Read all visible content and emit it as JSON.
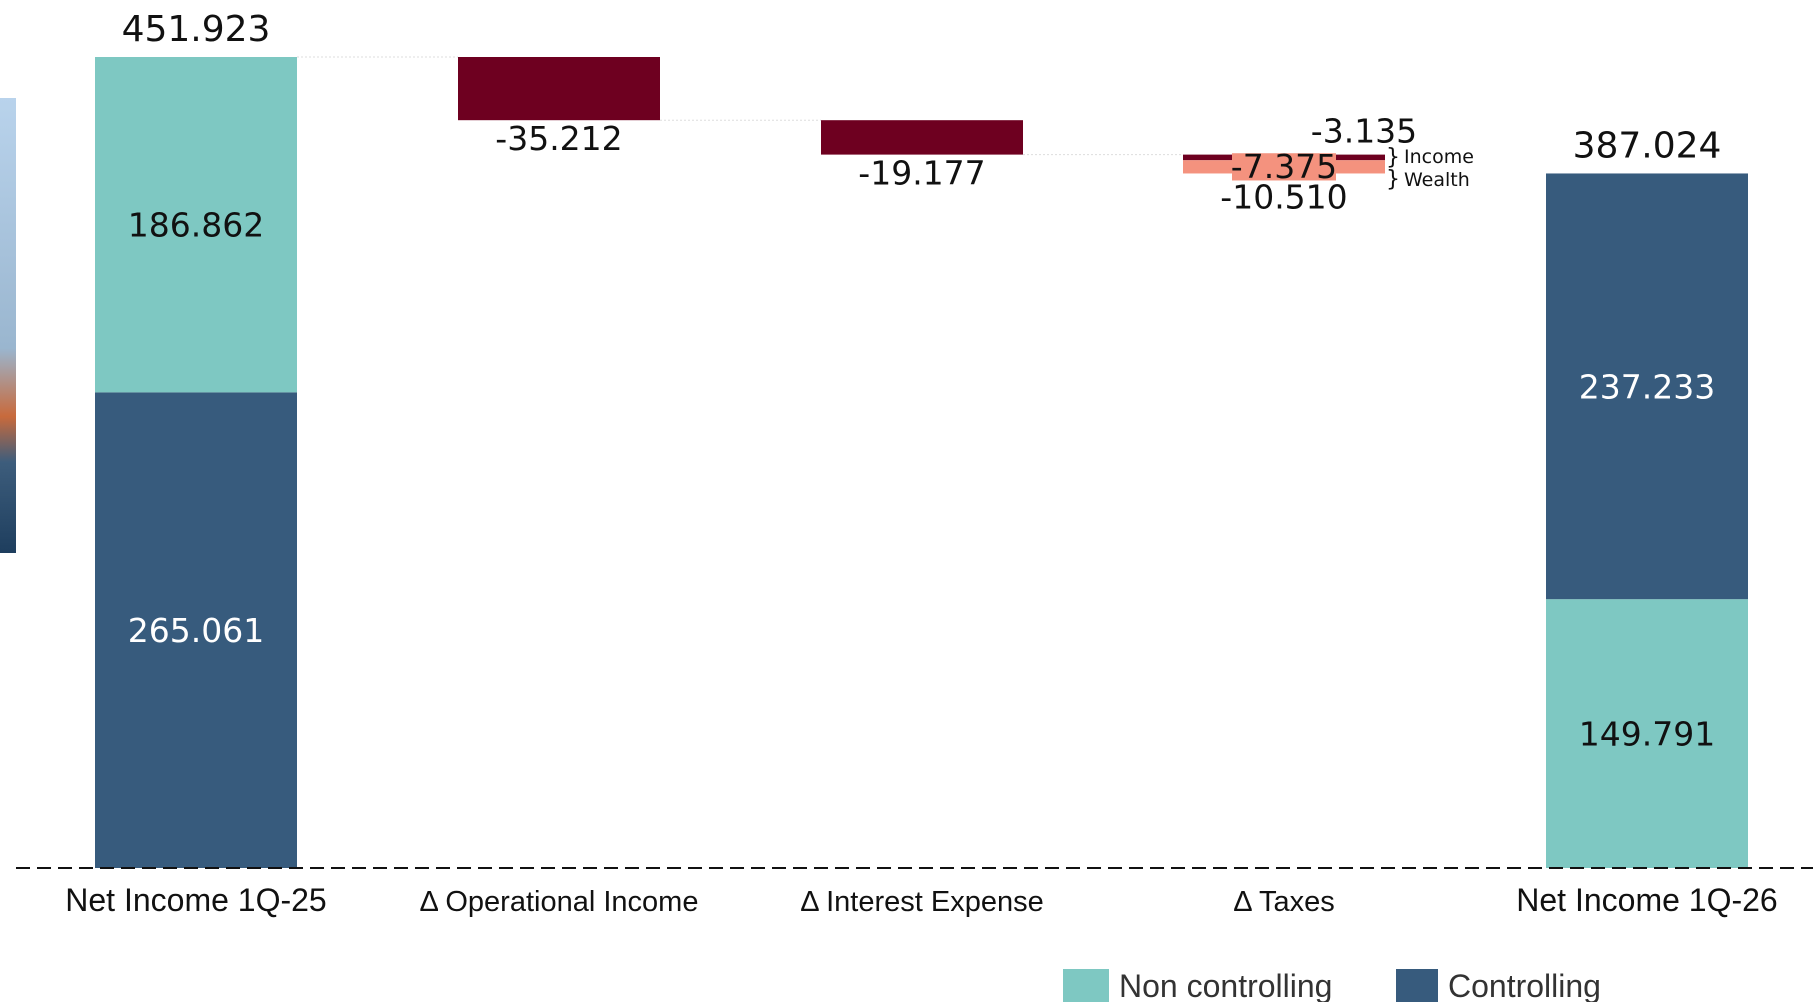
{
  "chart_data": {
    "type": "bar",
    "subtype": "waterfall",
    "categories": [
      "Net Income 1Q-25",
      "Δ Operational Income",
      "Δ Interest Expense",
      "Δ Taxes",
      "Net Income 1Q-26"
    ],
    "start": {
      "category": "Net Income 1Q-25",
      "total": 451923,
      "total_label": "451.923",
      "segments": [
        {
          "series": "Controlling",
          "value": 265061,
          "label": "265.061"
        },
        {
          "series": "Non controlling",
          "value": 186862,
          "label": "186.862"
        }
      ]
    },
    "deltas": [
      {
        "category": "Δ Operational Income",
        "value": -35212,
        "label": "-35.212"
      },
      {
        "category": "Δ Interest Expense",
        "value": -19177,
        "label": "-19.177"
      },
      {
        "category": "Δ Taxes",
        "value": -10510,
        "label": "-10.510",
        "components": [
          {
            "name": "Income",
            "value": -3135,
            "label": "-3.135"
          },
          {
            "name": "Wealth",
            "value": -7375,
            "label": "-7.375"
          }
        ]
      }
    ],
    "end": {
      "category": "Net Income 1Q-26",
      "total": 387024,
      "total_label": "387.024",
      "segments": [
        {
          "series": "Non controlling",
          "value": 149791,
          "label": "149.791"
        },
        {
          "series": "Controlling",
          "value": 237233,
          "label": "237.233"
        }
      ]
    },
    "legend": [
      {
        "name": "Non controlling",
        "color": "#7ec8c2"
      },
      {
        "name": "Controlling",
        "color": "#375b7d"
      }
    ],
    "legend_position": "bottom-right",
    "ylim": [
      0,
      451923
    ],
    "grid": false,
    "colors": {
      "controlling": "#375b7d",
      "non_controlling": "#7ec8c2",
      "negative": "#6e0020",
      "tax_wealth": "#f4927e"
    }
  }
}
